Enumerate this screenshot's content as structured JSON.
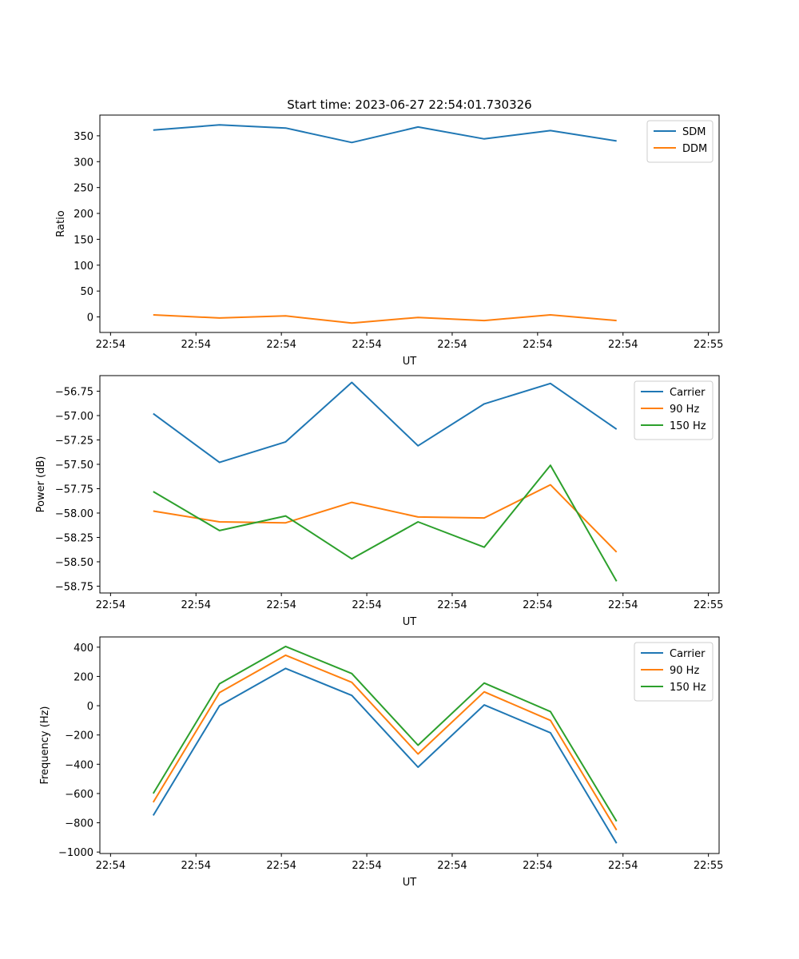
{
  "chart_data": [
    {
      "type": "line",
      "title": "Start time: 2023-06-27 22:54:01.730326",
      "xlabel": "UT",
      "ylabel": "Ratio",
      "xticks": [
        "22:54",
        "22:54",
        "22:54",
        "22:54",
        "22:54",
        "22:54",
        "22:54",
        "22:55"
      ],
      "x": [
        1,
        2,
        3,
        4,
        5,
        6,
        7,
        8
      ],
      "xlim": [
        0,
        12
      ],
      "ylim": [
        -30,
        390
      ],
      "yticks": [
        0,
        50,
        100,
        150,
        200,
        250,
        300,
        350
      ],
      "legend_position": "top-right",
      "grid": false,
      "series": [
        {
          "name": "SDM",
          "color": "#1f77b4",
          "values": [
            361,
            371,
            365,
            337,
            367,
            344,
            360,
            340
          ]
        },
        {
          "name": "DDM",
          "color": "#ff7f0e",
          "values": [
            4,
            -2,
            2,
            -12,
            -1,
            -7,
            4,
            -7
          ]
        }
      ]
    },
    {
      "type": "line",
      "title": "",
      "xlabel": "UT",
      "ylabel": "Power (dB)",
      "xticks": [
        "22:54",
        "22:54",
        "22:54",
        "22:54",
        "22:54",
        "22:54",
        "22:54",
        "22:55"
      ],
      "x": [
        1,
        2,
        3,
        4,
        5,
        6,
        7,
        8
      ],
      "xlim": [
        0,
        12
      ],
      "ylim": [
        -58.82,
        -56.59
      ],
      "yticks": [
        -56.75,
        -57.0,
        -57.25,
        -57.5,
        -57.75,
        -58.0,
        -58.25,
        -58.5,
        -58.75
      ],
      "ytick_labels": [
        "−56.75",
        "−57.00",
        "−57.25",
        "−57.50",
        "−57.75",
        "−58.00",
        "−58.25",
        "−58.50",
        "−58.75"
      ],
      "legend_position": "top-right",
      "grid": false,
      "series": [
        {
          "name": "Carrier",
          "color": "#1f77b4",
          "values": [
            -56.98,
            -57.48,
            -57.27,
            -56.66,
            -57.31,
            -56.88,
            -56.67,
            -57.14
          ]
        },
        {
          "name": "90 Hz",
          "color": "#ff7f0e",
          "values": [
            -57.98,
            -58.09,
            -58.1,
            -57.89,
            -58.04,
            -58.05,
            -57.71,
            -58.4
          ]
        },
        {
          "name": "150 Hz",
          "color": "#2ca02c",
          "values": [
            -57.78,
            -58.18,
            -58.03,
            -58.47,
            -58.09,
            -58.35,
            -57.51,
            -58.7
          ]
        }
      ]
    },
    {
      "type": "line",
      "title": "",
      "xlabel": "UT",
      "ylabel": "Frequency (Hz)",
      "xticks": [
        "22:54",
        "22:54",
        "22:54",
        "22:54",
        "22:54",
        "22:54",
        "22:54",
        "22:55"
      ],
      "x": [
        1,
        2,
        3,
        4,
        5,
        6,
        7,
        8
      ],
      "xlim": [
        0,
        12
      ],
      "ylim": [
        -1010,
        470
      ],
      "yticks": [
        400,
        200,
        0,
        -200,
        -400,
        -600,
        -800,
        -1000
      ],
      "ytick_labels": [
        "400",
        "200",
        "0",
        "−200",
        "−400",
        "−600",
        "−800",
        "−1000"
      ],
      "legend_position": "top-right",
      "grid": false,
      "series": [
        {
          "name": "Carrier",
          "color": "#1f77b4",
          "values": [
            -750,
            0,
            255,
            70,
            -420,
            5,
            -185,
            -940
          ]
        },
        {
          "name": "90 Hz",
          "color": "#ff7f0e",
          "values": [
            -660,
            90,
            345,
            160,
            -330,
            95,
            -100,
            -850
          ]
        },
        {
          "name": "150 Hz",
          "color": "#2ca02c",
          "values": [
            -600,
            150,
            405,
            220,
            -270,
            155,
            -40,
            -790
          ]
        }
      ]
    }
  ]
}
